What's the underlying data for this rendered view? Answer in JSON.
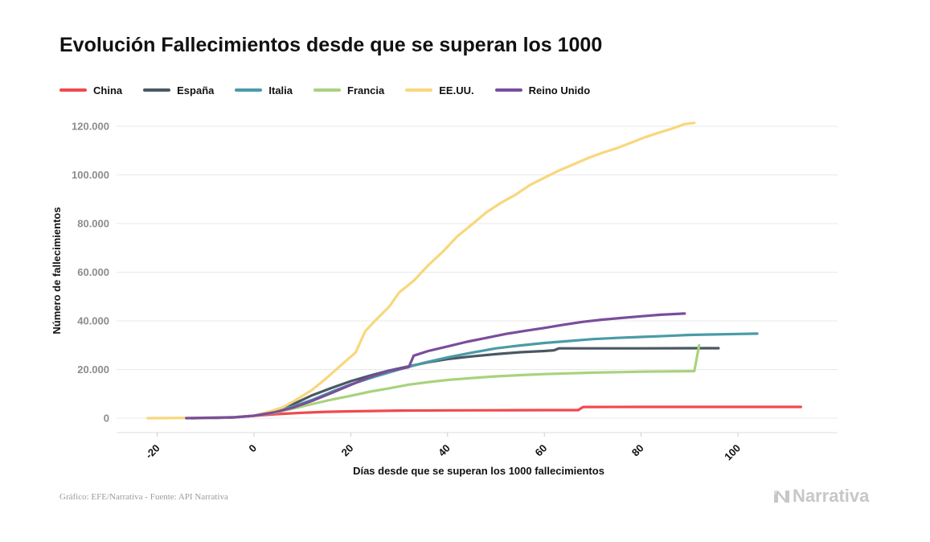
{
  "title": "Evolución Fallecimientos desde que se superan los 1000",
  "source": "Gráfico: EFE/Narrativa - Fuente: API Narrativa",
  "brand": "Narrativa",
  "chart_data": {
    "type": "line",
    "xlabel": "Días desde que se superan los 1000 fallecimientos",
    "ylabel": "Número de fallecimientos",
    "xlim": [
      -28,
      120
    ],
    "ylim": [
      -5000,
      127000
    ],
    "x_ticks": [
      -20,
      0,
      20,
      40,
      60,
      80,
      100
    ],
    "x_tick_labels": [
      "-20",
      "0",
      "20",
      "40",
      "60",
      "80",
      "100"
    ],
    "y_ticks": [
      0,
      20000,
      40000,
      60000,
      80000,
      100000,
      120000
    ],
    "y_tick_labels": [
      "0",
      "20.000",
      "40.000",
      "60.000",
      "80.000",
      "100.000",
      "120.000"
    ],
    "grid": true,
    "legend_position": "top-left",
    "series": [
      {
        "name": "China",
        "color": "#f0494e",
        "points": [
          [
            0,
            1000
          ],
          [
            5,
            1700
          ],
          [
            10,
            2200
          ],
          [
            15,
            2600
          ],
          [
            20,
            2800
          ],
          [
            30,
            3100
          ],
          [
            40,
            3200
          ],
          [
            50,
            3250
          ],
          [
            60,
            3300
          ],
          [
            67,
            3320
          ],
          [
            68,
            4600
          ],
          [
            80,
            4630
          ],
          [
            100,
            4640
          ],
          [
            113,
            4640
          ]
        ]
      },
      {
        "name": "España",
        "color": "#4b5863",
        "points": [
          [
            -13,
            0
          ],
          [
            -8,
            50
          ],
          [
            -4,
            300
          ],
          [
            0,
            1000
          ],
          [
            4,
            2700
          ],
          [
            8,
            5700
          ],
          [
            12,
            9400
          ],
          [
            16,
            12400
          ],
          [
            20,
            15200
          ],
          [
            24,
            17500
          ],
          [
            28,
            19600
          ],
          [
            32,
            21300
          ],
          [
            36,
            23000
          ],
          [
            40,
            24300
          ],
          [
            45,
            25400
          ],
          [
            50,
            26300
          ],
          [
            55,
            27100
          ],
          [
            60,
            27600
          ],
          [
            62,
            27900
          ],
          [
            63,
            28700
          ],
          [
            70,
            28700
          ],
          [
            80,
            28700
          ],
          [
            90,
            28750
          ],
          [
            96,
            28750
          ]
        ]
      },
      {
        "name": "Italia",
        "color": "#4a9ba7",
        "points": [
          [
            -13,
            0
          ],
          [
            -8,
            100
          ],
          [
            -4,
            400
          ],
          [
            0,
            1000
          ],
          [
            4,
            2500
          ],
          [
            8,
            4800
          ],
          [
            12,
            7500
          ],
          [
            16,
            10800
          ],
          [
            20,
            13900
          ],
          [
            25,
            17100
          ],
          [
            30,
            20000
          ],
          [
            35,
            22700
          ],
          [
            40,
            25000
          ],
          [
            45,
            26900
          ],
          [
            50,
            28700
          ],
          [
            55,
            29900
          ],
          [
            60,
            30900
          ],
          [
            65,
            31700
          ],
          [
            70,
            32500
          ],
          [
            75,
            33000
          ],
          [
            80,
            33400
          ],
          [
            85,
            33800
          ],
          [
            90,
            34200
          ],
          [
            95,
            34400
          ],
          [
            100,
            34600
          ],
          [
            104,
            34750
          ]
        ]
      },
      {
        "name": "Francia",
        "color": "#a9d27e",
        "points": [
          [
            -13,
            0
          ],
          [
            -8,
            100
          ],
          [
            -4,
            400
          ],
          [
            0,
            1000
          ],
          [
            4,
            2100
          ],
          [
            8,
            3900
          ],
          [
            12,
            5800
          ],
          [
            16,
            7600
          ],
          [
            20,
            9200
          ],
          [
            24,
            10900
          ],
          [
            28,
            12300
          ],
          [
            32,
            13800
          ],
          [
            36,
            14800
          ],
          [
            40,
            15700
          ],
          [
            45,
            16500
          ],
          [
            50,
            17200
          ],
          [
            55,
            17700
          ],
          [
            60,
            18100
          ],
          [
            65,
            18400
          ],
          [
            70,
            18700
          ],
          [
            75,
            18900
          ],
          [
            80,
            19100
          ],
          [
            85,
            19200
          ],
          [
            90,
            19300
          ],
          [
            91,
            19350
          ],
          [
            92,
            30000
          ]
        ]
      },
      {
        "name": "EE.UU.",
        "color": "#f8d77c",
        "points": [
          [
            -22,
            0
          ],
          [
            -18,
            40
          ],
          [
            -13,
            100
          ],
          [
            -8,
            200
          ],
          [
            -4,
            400
          ],
          [
            0,
            1000
          ],
          [
            3,
            2600
          ],
          [
            6,
            4500
          ],
          [
            9,
            7900
          ],
          [
            12,
            11600
          ],
          [
            15,
            16500
          ],
          [
            18,
            21800
          ],
          [
            21,
            27000
          ],
          [
            23,
            35800
          ],
          [
            25,
            40000
          ],
          [
            28,
            46000
          ],
          [
            30,
            51700
          ],
          [
            33,
            56500
          ],
          [
            36,
            62800
          ],
          [
            39,
            68400
          ],
          [
            42,
            74700
          ],
          [
            45,
            79600
          ],
          [
            48,
            84600
          ],
          [
            51,
            88500
          ],
          [
            54,
            91800
          ],
          [
            57,
            95800
          ],
          [
            60,
            98800
          ],
          [
            63,
            101800
          ],
          [
            66,
            104300
          ],
          [
            69,
            106900
          ],
          [
            72,
            109100
          ],
          [
            75,
            111000
          ],
          [
            78,
            113300
          ],
          [
            81,
            115600
          ],
          [
            84,
            117600
          ],
          [
            87,
            119400
          ],
          [
            89,
            120900
          ],
          [
            91,
            121400
          ]
        ]
      },
      {
        "name": "Reino Unido",
        "color": "#7a4d9c",
        "points": [
          [
            -14,
            0
          ],
          [
            -8,
            200
          ],
          [
            -4,
            400
          ],
          [
            0,
            1000
          ],
          [
            4,
            2300
          ],
          [
            8,
            4300
          ],
          [
            12,
            7100
          ],
          [
            16,
            10300
          ],
          [
            20,
            13700
          ],
          [
            24,
            17000
          ],
          [
            28,
            19500
          ],
          [
            32,
            21000
          ],
          [
            33,
            25700
          ],
          [
            36,
            27600
          ],
          [
            40,
            29500
          ],
          [
            44,
            31400
          ],
          [
            48,
            33000
          ],
          [
            52,
            34600
          ],
          [
            56,
            35900
          ],
          [
            60,
            37100
          ],
          [
            64,
            38400
          ],
          [
            68,
            39600
          ],
          [
            72,
            40500
          ],
          [
            76,
            41200
          ],
          [
            80,
            41900
          ],
          [
            84,
            42500
          ],
          [
            89,
            43000
          ]
        ]
      }
    ]
  }
}
